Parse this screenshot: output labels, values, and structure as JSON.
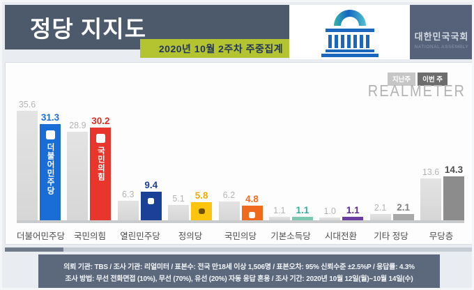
{
  "header": {
    "title": "정당 지지도",
    "ribbon": "2020년 10월 2주차 주중집계",
    "assembly": {
      "kr": "대한민국국회",
      "en": "NATIONAL ASSEMBLY"
    },
    "band_color": "#4d5a6c",
    "ribbon_color": "#b4c330"
  },
  "legend": {
    "prev_label": "지난주",
    "curr_label": "이번 주",
    "brand": "REALMETER"
  },
  "chart_data": {
    "type": "bar",
    "title": "정당 지지도",
    "subtitle": "2020년 10월 2주차 주중집계",
    "unit": "%",
    "grid": false,
    "legend_position": "top-right",
    "ylim": [
      0,
      38
    ],
    "categories": [
      "더불어민주당",
      "국민의힘",
      "열린민주당",
      "정의당",
      "국민의당",
      "기본소득당",
      "시대전환",
      "기타 정당",
      "무당층"
    ],
    "series": [
      {
        "name": "지난주",
        "values": [
          35.6,
          28.9,
          6.3,
          5.1,
          6.2,
          1.1,
          1.0,
          2.1,
          13.6
        ],
        "bar_color": "#dcdcdc",
        "label_color": "#b4b4b4"
      },
      {
        "name": "이번 주",
        "values": [
          31.3,
          30.2,
          9.4,
          5.8,
          4.8,
          1.1,
          1.1,
          2.1,
          14.3
        ]
      }
    ],
    "current_bar_colors": [
      "#1a6dd4",
      "#e8362d",
      "#1b4098",
      "#fdc40d",
      "#f06a1d",
      "#7cc7b0",
      "#6a3d9e",
      "#a8a8a8",
      "#8c8c8c"
    ],
    "current_label_colors": [
      "#1a6dd4",
      "#d93025",
      "#1b4098",
      "#f0ad00",
      "#f06a1d",
      "#2eb09a",
      "#5b2d91",
      "#7f7f7f",
      "#4d4d4d"
    ],
    "in_bar_texts": [
      "더불어민주당",
      "국민의힘",
      "",
      "",
      "",
      "",
      "",
      "",
      ""
    ],
    "logo_styles": [
      "logo-white-lg",
      "logo-white-lg",
      "logo-white-sm",
      "logo-dark-sm",
      "logo-white-sm",
      "",
      "",
      "",
      ""
    ]
  },
  "footer": {
    "line1": "의뢰 기관: TBS / 조사 기관: 리얼미터 / 표본수: 전국 만18세 이상 1,506명 / 표본오차: 95% 신뢰수준 ±2.5%P / 응답률: 4.3%",
    "line2": "조사 방법: 무선 전화면접 (10%), 무선 (70%), 유선 (20%) 자동 응답 혼용 / 조사 기간: 2020년 10월 12일(월)~10월 14일(수)"
  }
}
